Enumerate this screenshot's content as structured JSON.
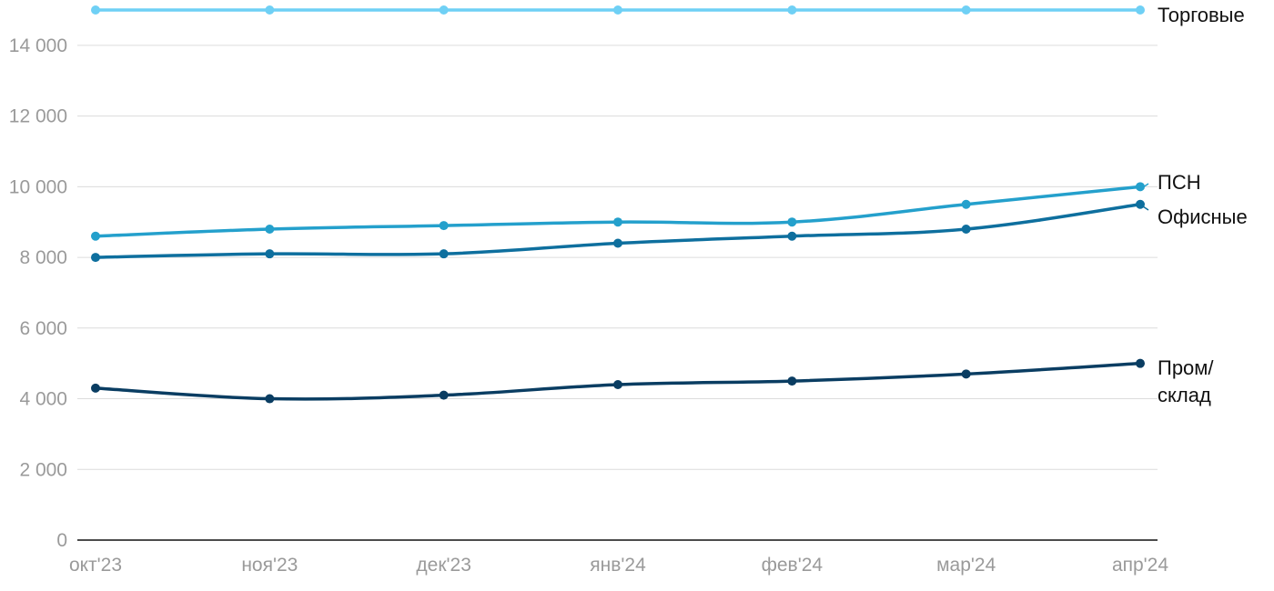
{
  "chart_data": {
    "type": "line",
    "title": "",
    "xlabel": "",
    "ylabel": "",
    "categories": [
      "окт'23",
      "ноя'23",
      "дек'23",
      "янв'24",
      "фев'24",
      "мар'24",
      "апр'24"
    ],
    "y_ticks": [
      0,
      2000,
      4000,
      6000,
      8000,
      10000,
      12000,
      14000
    ],
    "y_tick_labels": [
      "0",
      "2 000",
      "4 000",
      "6 000",
      "8 000",
      "10 000",
      "12 000",
      "14 000"
    ],
    "ylim": [
      0,
      15000
    ],
    "grid": true,
    "legend": "direct-labels-right",
    "series": [
      {
        "name": "Торговые",
        "label_lines": [
          "Торговые"
        ],
        "color": "#6fd0f5",
        "values": [
          15000,
          15000,
          15000,
          15000,
          15000,
          15000,
          15000
        ]
      },
      {
        "name": "ПСН",
        "label_lines": [
          "ПСН"
        ],
        "color": "#24a0cc",
        "values": [
          8600,
          8800,
          8900,
          9000,
          9000,
          9500,
          10000
        ]
      },
      {
        "name": "Офисные",
        "label_lines": [
          "Офисные"
        ],
        "color": "#0e6f9e",
        "values": [
          8000,
          8100,
          8100,
          8400,
          8600,
          8800,
          9500
        ]
      },
      {
        "name": "Пром/ склад",
        "label_lines": [
          "Пром/",
          "склад"
        ],
        "color": "#0a3d62",
        "values": [
          4300,
          4000,
          4100,
          4400,
          4500,
          4700,
          5000
        ]
      }
    ]
  }
}
